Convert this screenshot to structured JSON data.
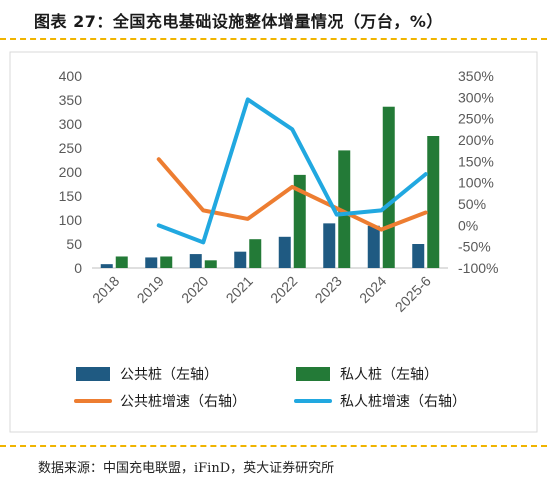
{
  "title": "图表 27：全国充电基础设施整体增量情况（万台，%）",
  "source": "数据来源：中国充电联盟，iFinD，英大证券研究所",
  "colors": {
    "public": "#1f5a82",
    "private": "#237a37",
    "public_growth": "#ed7d31",
    "private_growth": "#21a8e0",
    "accent": "#f0b400"
  },
  "chart_data": {
    "type": "bar",
    "categories": [
      "2018",
      "2019",
      "2020",
      "2021",
      "2022",
      "2023",
      "2024",
      "2025-6"
    ],
    "series": [
      {
        "name": "公共桩（左轴）",
        "type": "bar",
        "axis": "left",
        "values": [
          8,
          22,
          29,
          34,
          65,
          93,
          88,
          50
        ]
      },
      {
        "name": "私人桩（左轴）",
        "type": "bar",
        "axis": "left",
        "values": [
          24,
          24,
          16,
          60,
          194,
          245,
          336,
          275
        ]
      },
      {
        "name": "公共桩增速（右轴）",
        "type": "line",
        "axis": "right",
        "values": [
          null,
          155,
          35,
          15,
          90,
          40,
          -10,
          30
        ]
      },
      {
        "name": "私人桩增速（右轴）",
        "type": "line",
        "axis": "right",
        "values": [
          null,
          0,
          -40,
          295,
          225,
          25,
          35,
          120
        ]
      }
    ],
    "ylim_left": [
      0,
      400
    ],
    "yticks_left": [
      0,
      50,
      100,
      150,
      200,
      250,
      300,
      350,
      400
    ],
    "ylim_right": [
      -100,
      350
    ],
    "yticks_right": [
      "-100%",
      "-50%",
      "0%",
      "50%",
      "100%",
      "150%",
      "200%",
      "250%",
      "300%",
      "350%"
    ],
    "legend_position": "bottom",
    "grid": false
  }
}
